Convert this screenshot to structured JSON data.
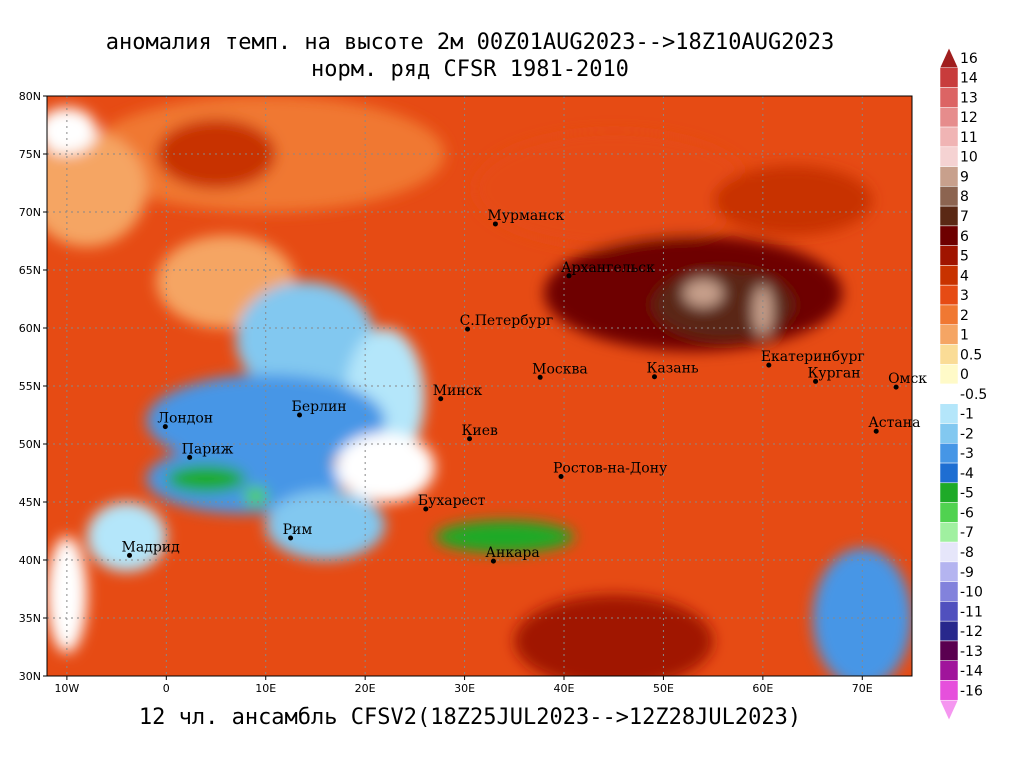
{
  "title": {
    "line1": "аномалия темп. на высоте 2м 00Z01AUG2023-->18Z10AUG2023",
    "line2": "норм. ряд CFSR 1981-2010"
  },
  "footer": "12 чл. ансамбль CFSV2(18Z25JUL2023-->12Z28JUL2023)",
  "chart_data": {
    "type": "heatmap",
    "map_extent": {
      "lon": [
        -12,
        75
      ],
      "lat": [
        30,
        80
      ]
    },
    "lat_ticks": [
      {
        "value": 80,
        "label": "80N"
      },
      {
        "value": 75,
        "label": "75N"
      },
      {
        "value": 70,
        "label": "70N"
      },
      {
        "value": 65,
        "label": "65N"
      },
      {
        "value": 60,
        "label": "60N"
      },
      {
        "value": 55,
        "label": "55N"
      },
      {
        "value": 50,
        "label": "50N"
      },
      {
        "value": 45,
        "label": "45N"
      },
      {
        "value": 40,
        "label": "40N"
      },
      {
        "value": 35,
        "label": "35N"
      },
      {
        "value": 30,
        "label": "30N"
      }
    ],
    "lon_ticks": [
      {
        "value": -10,
        "label": "10W"
      },
      {
        "value": 0,
        "label": "0"
      },
      {
        "value": 10,
        "label": "10E"
      },
      {
        "value": 20,
        "label": "20E"
      },
      {
        "value": 30,
        "label": "30E"
      },
      {
        "value": 40,
        "label": "40E"
      },
      {
        "value": 50,
        "label": "50E"
      },
      {
        "value": 60,
        "label": "60E"
      },
      {
        "value": 70,
        "label": "70E"
      }
    ],
    "grid": true,
    "colorbar": [
      {
        "label": "16",
        "color": "#a01e1e"
      },
      {
        "label": "14",
        "color": "#c83c3c"
      },
      {
        "label": "13",
        "color": "#dc6464"
      },
      {
        "label": "12",
        "color": "#e68c8c"
      },
      {
        "label": "11",
        "color": "#f0b4b4"
      },
      {
        "label": "10",
        "color": "#f5d2d2"
      },
      {
        "label": "9",
        "color": "#c8a08c"
      },
      {
        "label": "8",
        "color": "#8c6450"
      },
      {
        "label": "7",
        "color": "#5a2814"
      },
      {
        "label": "6",
        "color": "#6e0000"
      },
      {
        "label": "5",
        "color": "#a01400"
      },
      {
        "label": "4",
        "color": "#c83200"
      },
      {
        "label": "3",
        "color": "#e64b14"
      },
      {
        "label": "2",
        "color": "#f07832"
      },
      {
        "label": "1",
        "color": "#f5a564"
      },
      {
        "label": "0.5",
        "color": "#fadc96"
      },
      {
        "label": "0",
        "color": "#fffac8"
      },
      {
        "label": "-0.5",
        "color": "#ffffff"
      },
      {
        "label": "-1",
        "color": "#b4e6fa"
      },
      {
        "label": "-2",
        "color": "#82c8f0"
      },
      {
        "label": "-3",
        "color": "#4696e6"
      },
      {
        "label": "-4",
        "color": "#1e6ed2"
      },
      {
        "label": "-5",
        "color": "#1eaa28"
      },
      {
        "label": "-6",
        "color": "#50d250"
      },
      {
        "label": "-7",
        "color": "#a0f0a0"
      },
      {
        "label": "-8",
        "color": "#e6e6fa"
      },
      {
        "label": "-9",
        "color": "#b4b4f0"
      },
      {
        "label": "-10",
        "color": "#8282dc"
      },
      {
        "label": "-11",
        "color": "#5050be"
      },
      {
        "label": "-12",
        "color": "#28288c"
      },
      {
        "label": "-13",
        "color": "#5a0050"
      },
      {
        "label": "-14",
        "color": "#a0149b"
      },
      {
        "label": "-16",
        "color": "#e650dc"
      },
      {
        "label": "",
        "color": "#f596f0"
      }
    ],
    "cities": [
      {
        "name": "Мурманск",
        "lon": 33.1,
        "lat": 68.97
      },
      {
        "name": "Архангельск",
        "lon": 40.5,
        "lat": 64.5
      },
      {
        "name": "С.Петербург",
        "lon": 30.3,
        "lat": 59.9
      },
      {
        "name": "Москва",
        "lon": 37.6,
        "lat": 55.75
      },
      {
        "name": "Казань",
        "lon": 49.1,
        "lat": 55.8
      },
      {
        "name": "Екатеринбург",
        "lon": 60.6,
        "lat": 56.8
      },
      {
        "name": "Курган",
        "lon": 65.3,
        "lat": 55.4
      },
      {
        "name": "Омск",
        "lon": 73.4,
        "lat": 54.9
      },
      {
        "name": "Астана",
        "lon": 71.4,
        "lat": 51.1
      },
      {
        "name": "Минск",
        "lon": 27.6,
        "lat": 53.9
      },
      {
        "name": "Киев",
        "lon": 30.5,
        "lat": 50.45
      },
      {
        "name": "Ростов-на-Дону",
        "lon": 39.7,
        "lat": 47.2
      },
      {
        "name": "Лондон",
        "lon": -0.1,
        "lat": 51.5
      },
      {
        "name": "Париж",
        "lon": 2.35,
        "lat": 48.85
      },
      {
        "name": "Берлин",
        "lon": 13.4,
        "lat": 52.5
      },
      {
        "name": "Бухарест",
        "lon": 26.1,
        "lat": 44.4
      },
      {
        "name": "Рим",
        "lon": 12.5,
        "lat": 41.9
      },
      {
        "name": "Мадрид",
        "lon": -3.7,
        "lat": 40.4
      },
      {
        "name": "Анкара",
        "lon": 32.9,
        "lat": 39.9
      }
    ],
    "anomaly_regions": [
      {
        "level": "2",
        "center": [
          10,
          75
        ],
        "radius": [
          18,
          5
        ]
      },
      {
        "level": "1",
        "center": [
          -8,
          72
        ],
        "radius": [
          6,
          5
        ]
      },
      {
        "level": "-0.5",
        "center": [
          -10,
          77
        ],
        "radius": [
          3,
          2
        ]
      },
      {
        "level": "4",
        "center": [
          5,
          75
        ],
        "radius": [
          6,
          3
        ]
      },
      {
        "level": "3",
        "center": [
          45,
          72
        ],
        "radius": [
          14,
          5
        ]
      },
      {
        "level": "4",
        "center": [
          63,
          71
        ],
        "radius": [
          8,
          3
        ]
      },
      {
        "level": "6",
        "center": [
          53,
          63
        ],
        "radius": [
          15,
          5
        ]
      },
      {
        "level": "7",
        "center": [
          56,
          62
        ],
        "radius": [
          7,
          3
        ]
      },
      {
        "level": "9",
        "center": [
          54,
          63
        ],
        "radius": [
          2,
          1.2
        ]
      },
      {
        "level": "9",
        "center": [
          60,
          61.5
        ],
        "radius": [
          1,
          2.2
        ]
      },
      {
        "level": "1",
        "center": [
          6,
          64
        ],
        "radius": [
          7,
          4
        ]
      },
      {
        "level": "-2",
        "center": [
          14,
          59
        ],
        "radius": [
          7,
          5
        ]
      },
      {
        "level": "-1",
        "center": [
          22,
          54
        ],
        "radius": [
          4,
          6
        ]
      },
      {
        "level": "-3",
        "center": [
          10,
          52
        ],
        "radius": [
          12,
          4
        ]
      },
      {
        "level": "-3",
        "center": [
          8,
          47
        ],
        "radius": [
          10,
          3
        ]
      },
      {
        "level": "-5",
        "center": [
          4,
          47
        ],
        "radius": [
          4,
          1.2
        ]
      },
      {
        "level": "-6",
        "center": [
          9,
          45.5
        ],
        "radius": [
          1.2,
          0.8
        ]
      },
      {
        "level": "-2",
        "center": [
          16,
          43
        ],
        "radius": [
          6,
          3
        ]
      },
      {
        "level": "-1",
        "center": [
          -4,
          42
        ],
        "radius": [
          4,
          3
        ]
      },
      {
        "level": "-0.5",
        "center": [
          22,
          48
        ],
        "radius": [
          5,
          3
        ]
      },
      {
        "level": "-5",
        "center": [
          34,
          42
        ],
        "radius": [
          7,
          1.4
        ]
      },
      {
        "level": "5",
        "center": [
          45,
          33
        ],
        "radius": [
          10,
          4
        ]
      },
      {
        "level": "-3",
        "center": [
          70,
          35
        ],
        "radius": [
          5,
          6
        ]
      },
      {
        "level": "-0.5",
        "center": [
          -10,
          37
        ],
        "radius": [
          2,
          5
        ]
      }
    ]
  }
}
